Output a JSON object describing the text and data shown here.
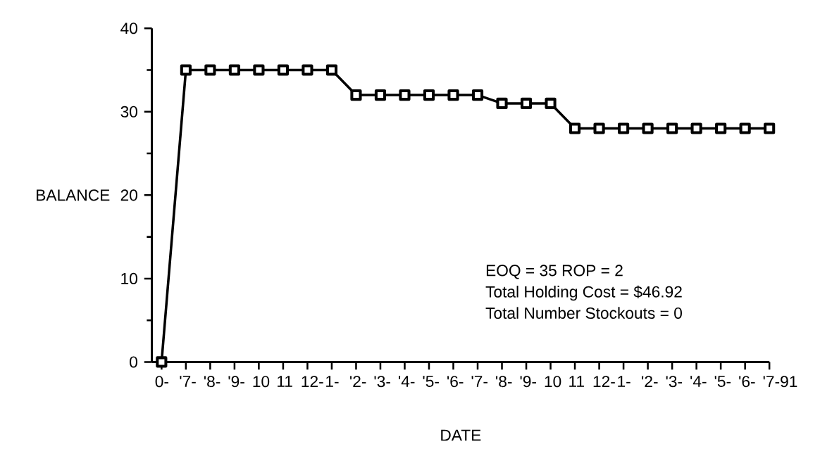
{
  "chart_data": {
    "type": "line",
    "xlabel": "DATE",
    "ylabel": "BALANCE",
    "categories": [
      "0-",
      "'7-",
      "'8-",
      "'9-",
      "10",
      "11",
      "12-",
      "1-",
      "'2-",
      "'3-",
      "'4-",
      "'5-",
      "'6-",
      "'7-",
      "'8-",
      "'9-",
      "10",
      "11",
      "12-",
      "1-",
      "'2-",
      "'3-",
      "'4-",
      "'5-",
      "'6-",
      "'7-91"
    ],
    "values": [
      0,
      35,
      35,
      35,
      35,
      35,
      35,
      35,
      32,
      32,
      32,
      32,
      32,
      32,
      31,
      31,
      31,
      28,
      28,
      28,
      28,
      28,
      28,
      28,
      28,
      28
    ],
    "color": "#000000",
    "marker": "square",
    "line_style": "solid",
    "grid": false,
    "ylim": [
      0,
      40
    ],
    "yticks": [
      0,
      10,
      20,
      30,
      40
    ],
    "annotations": [
      "EOQ = 35  ROP = 2",
      "Total Holding Cost = $46.92",
      "Total Number Stockouts = 0"
    ]
  }
}
